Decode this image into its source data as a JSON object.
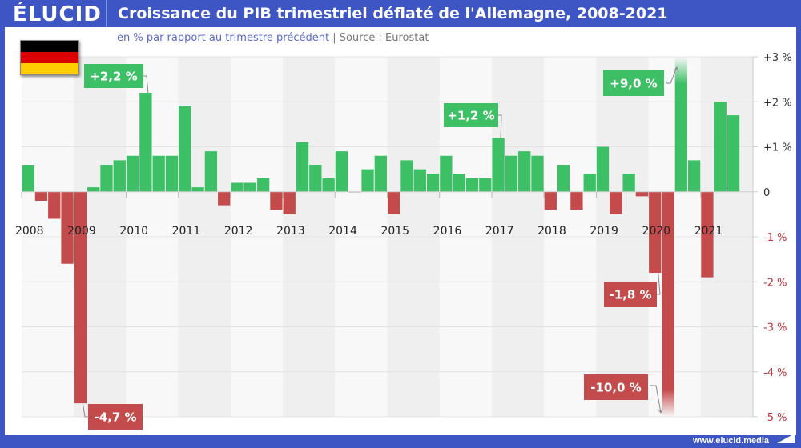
{
  "header": {
    "logo": "ÉLUCID",
    "title": "Croissance du PIB trimestriel déflaté de l'Allemagne, 2008-2021"
  },
  "subtitle": {
    "unit": "en % par rapport au trimestre précédent",
    "separator": "|",
    "source": "Source : Eurostat"
  },
  "flag": {
    "name": "germany-flag",
    "colors": [
      "#000000",
      "#dd0000",
      "#ffce00"
    ]
  },
  "footer": {
    "url": "www.elucid.media"
  },
  "colors": {
    "positive": "#3dbf66",
    "negative": "#c44b4b",
    "brand": "#3e56c4",
    "neg_tick": "#c0303a"
  },
  "chart_data": {
    "type": "bar",
    "title": "Croissance du PIB trimestriel déflaté de l'Allemagne, 2008-2021",
    "subtitle": "en % par rapport au trimestre précédent | Source : Eurostat",
    "xlabel": "",
    "ylabel": "",
    "ylim": [
      -5,
      3
    ],
    "grid": true,
    "yticks": [
      {
        "value": 3,
        "label": "+3 %"
      },
      {
        "value": 2,
        "label": "+2 %"
      },
      {
        "value": 1,
        "label": "+1 %"
      },
      {
        "value": 0,
        "label": "0"
      },
      {
        "value": -1,
        "label": "-1 %"
      },
      {
        "value": -2,
        "label": "-2 %"
      },
      {
        "value": -3,
        "label": "-3 %"
      },
      {
        "value": -4,
        "label": "-4 %"
      },
      {
        "value": -5,
        "label": "-5 %"
      }
    ],
    "year_labels": [
      "2008",
      "2009",
      "2010",
      "2011",
      "2012",
      "2013",
      "2014",
      "2015",
      "2016",
      "2017",
      "2018",
      "2019",
      "2020",
      "2021"
    ],
    "categories": [
      "2008T1",
      "2008T2",
      "2008T3",
      "2008T4",
      "2009T1",
      "2009T2",
      "2009T3",
      "2009T4",
      "2010T1",
      "2010T2",
      "2010T3",
      "2010T4",
      "2011T1",
      "2011T2",
      "2011T3",
      "2011T4",
      "2012T1",
      "2012T2",
      "2012T3",
      "2012T4",
      "2013T1",
      "2013T2",
      "2013T3",
      "2013T4",
      "2014T1",
      "2014T2",
      "2014T3",
      "2014T4",
      "2015T1",
      "2015T2",
      "2015T3",
      "2015T4",
      "2016T1",
      "2016T2",
      "2016T3",
      "2016T4",
      "2017T1",
      "2017T2",
      "2017T3",
      "2017T4",
      "2018T1",
      "2018T2",
      "2018T3",
      "2018T4",
      "2019T1",
      "2019T2",
      "2019T3",
      "2019T4",
      "2020T1",
      "2020T2",
      "2020T3",
      "2020T4",
      "2021T1",
      "2021T2",
      "2021T3"
    ],
    "values": [
      0.6,
      -0.2,
      -0.6,
      -1.6,
      -4.7,
      0.1,
      0.6,
      0.7,
      0.8,
      2.2,
      0.8,
      0.8,
      1.9,
      0.1,
      0.9,
      -0.3,
      0.2,
      0.2,
      0.3,
      -0.4,
      -0.5,
      1.1,
      0.6,
      0.3,
      0.9,
      0.0,
      0.5,
      0.8,
      -0.5,
      0.7,
      0.5,
      0.4,
      0.8,
      0.4,
      0.3,
      0.3,
      1.2,
      0.8,
      0.9,
      0.8,
      -0.4,
      0.6,
      -0.4,
      0.4,
      1.0,
      -0.5,
      0.4,
      -0.1,
      -1.8,
      -10.0,
      9.0,
      0.7,
      -1.9,
      2.0,
      1.7
    ],
    "annotations": [
      {
        "index": 9,
        "label": "+2,2 %",
        "sign": "positive"
      },
      {
        "index": 4,
        "label": "-4,7 %",
        "sign": "negative"
      },
      {
        "index": 36,
        "label": "+1,2 %",
        "sign": "positive"
      },
      {
        "index": 48,
        "label": "-1,8 %",
        "sign": "negative"
      },
      {
        "index": 49,
        "label": "-10,0 %",
        "sign": "negative",
        "clipped": true
      },
      {
        "index": 50,
        "label": "+9,0 %",
        "sign": "positive",
        "clipped": true
      }
    ]
  }
}
